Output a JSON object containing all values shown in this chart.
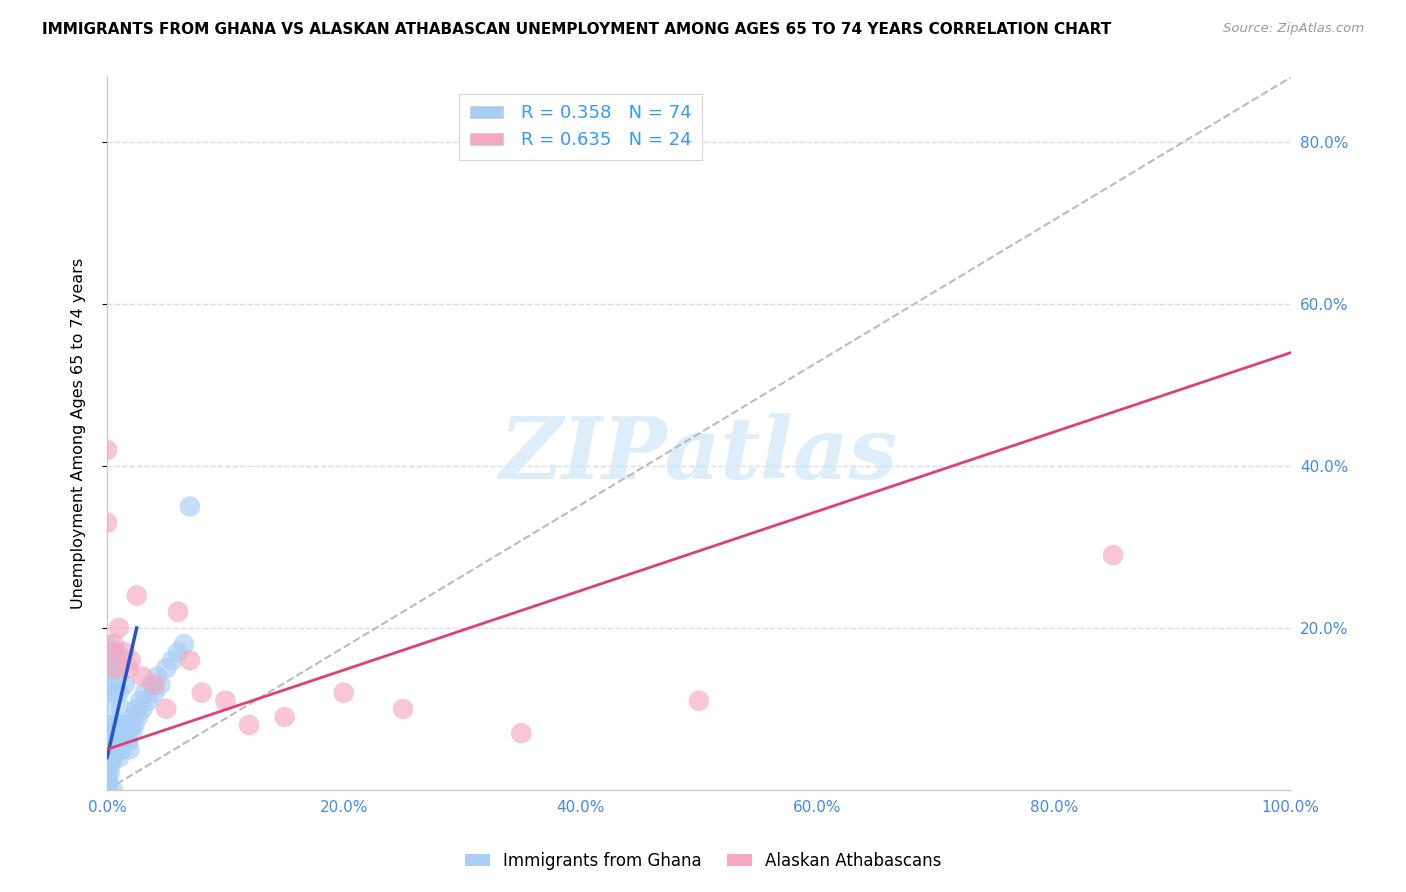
{
  "title": "IMMIGRANTS FROM GHANA VS ALASKAN ATHABASCAN UNEMPLOYMENT AMONG AGES 65 TO 74 YEARS CORRELATION CHART",
  "source": "Source: ZipAtlas.com",
  "ylabel": "Unemployment Among Ages 65 to 74 years",
  "xlim": [
    0,
    1.0
  ],
  "ylim": [
    0,
    0.88
  ],
  "xticks": [
    0.0,
    0.2,
    0.4,
    0.6,
    0.8,
    1.0
  ],
  "xticklabels": [
    "0.0%",
    "20.0%",
    "40.0%",
    "60.0%",
    "80.0%",
    "100.0%"
  ],
  "yticks_right": [
    0.2,
    0.4,
    0.6,
    0.8
  ],
  "yticklabels_right": [
    "20.0%",
    "40.0%",
    "60.0%",
    "80.0%"
  ],
  "grid_yticks": [
    0.2,
    0.4,
    0.6,
    0.8
  ],
  "legend_blue_R": "R = 0.358",
  "legend_blue_N": "N = 74",
  "legend_pink_R": "R = 0.635",
  "legend_pink_N": "N = 24",
  "legend_label_blue": "Immigrants from Ghana",
  "legend_label_pink": "Alaskan Athabascans",
  "blue_color": "#a8cef5",
  "pink_color": "#f5a8c0",
  "blue_line_color": "#2255cc",
  "pink_line_color": "#e04070",
  "ref_line_color": "#bbbbbb",
  "watermark_color": "#d8eaf8",
  "blue_scatter_x": [
    0.0,
    0.0,
    0.0,
    0.0,
    0.0,
    0.0,
    0.0,
    0.0,
    0.0,
    0.0,
    0.0,
    0.0,
    0.0,
    0.0,
    0.0,
    0.0,
    0.0,
    0.0,
    0.0,
    0.0,
    0.0,
    0.0,
    0.001,
    0.001,
    0.002,
    0.002,
    0.003,
    0.003,
    0.004,
    0.005,
    0.005,
    0.005,
    0.005,
    0.006,
    0.006,
    0.007,
    0.007,
    0.008,
    0.008,
    0.009,
    0.01,
    0.01,
    0.01,
    0.01,
    0.011,
    0.012,
    0.012,
    0.013,
    0.014,
    0.015,
    0.015,
    0.016,
    0.017,
    0.018,
    0.019,
    0.02,
    0.021,
    0.022,
    0.023,
    0.025,
    0.026,
    0.028,
    0.03,
    0.032,
    0.035,
    0.038,
    0.04,
    0.042,
    0.045,
    0.05,
    0.055,
    0.06,
    0.065,
    0.07
  ],
  "blue_scatter_y": [
    0.0,
    0.0,
    0.0,
    0.0,
    0.0,
    0.01,
    0.01,
    0.02,
    0.02,
    0.03,
    0.03,
    0.04,
    0.05,
    0.05,
    0.06,
    0.07,
    0.08,
    0.1,
    0.12,
    0.14,
    0.16,
    0.18,
    0.01,
    0.03,
    0.02,
    0.04,
    0.03,
    0.05,
    0.04,
    0.0,
    0.04,
    0.08,
    0.15,
    0.05,
    0.12,
    0.06,
    0.14,
    0.07,
    0.17,
    0.05,
    0.04,
    0.08,
    0.12,
    0.16,
    0.06,
    0.05,
    0.1,
    0.08,
    0.07,
    0.06,
    0.13,
    0.08,
    0.07,
    0.06,
    0.05,
    0.08,
    0.07,
    0.09,
    0.08,
    0.1,
    0.09,
    0.11,
    0.1,
    0.12,
    0.11,
    0.13,
    0.12,
    0.14,
    0.13,
    0.15,
    0.16,
    0.17,
    0.18,
    0.35
  ],
  "pink_scatter_x": [
    0.0,
    0.0,
    0.005,
    0.006,
    0.007,
    0.01,
    0.015,
    0.018,
    0.02,
    0.025,
    0.03,
    0.04,
    0.05,
    0.06,
    0.07,
    0.08,
    0.1,
    0.12,
    0.15,
    0.2,
    0.25,
    0.35,
    0.5,
    0.85
  ],
  "pink_scatter_y": [
    0.42,
    0.33,
    0.17,
    0.18,
    0.15,
    0.2,
    0.17,
    0.15,
    0.16,
    0.24,
    0.14,
    0.13,
    0.1,
    0.22,
    0.16,
    0.12,
    0.11,
    0.08,
    0.09,
    0.12,
    0.1,
    0.07,
    0.11,
    0.29
  ],
  "blue_line_x": [
    0.0,
    0.025
  ],
  "blue_line_y": [
    0.04,
    0.2
  ],
  "pink_line_x": [
    0.0,
    1.0
  ],
  "pink_line_y": [
    0.05,
    0.54
  ],
  "ref_line_x": [
    0.0,
    1.0
  ],
  "ref_line_y": [
    0.0,
    0.88
  ]
}
